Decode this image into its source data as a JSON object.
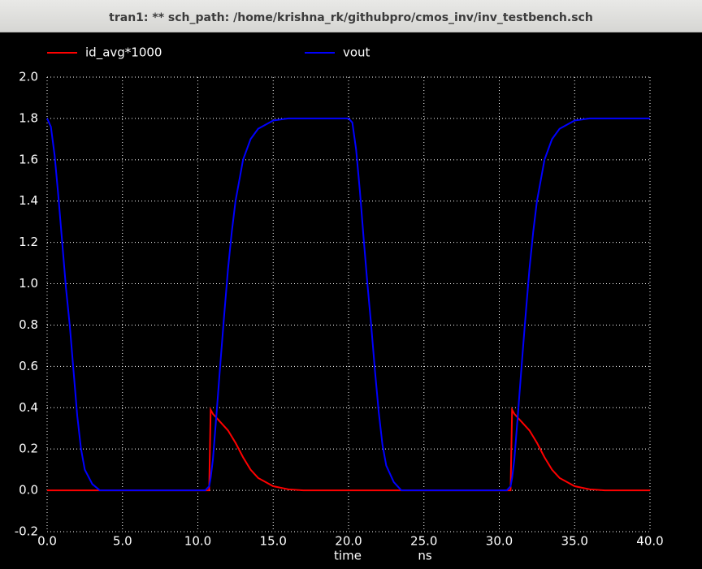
{
  "window": {
    "title": "tran1: ** sch_path: /home/krishna_rk/githubpro/cmos_inv/inv_testbench.sch"
  },
  "chart_data": {
    "type": "line",
    "xlabel": "time",
    "xunit": "ns",
    "x": [
      0,
      0.25,
      0.5,
      0.75,
      1,
      1.25,
      1.5,
      1.75,
      2,
      2.25,
      2.5,
      3,
      3.5,
      10.5,
      10.75,
      10.85,
      11,
      11.25,
      11.5,
      11.75,
      12,
      12.25,
      12.5,
      13,
      13.5,
      14,
      15,
      16,
      17,
      20,
      20.25,
      20.5,
      20.75,
      21,
      21.25,
      21.5,
      21.75,
      22,
      22.25,
      22.5,
      23,
      23.5,
      30.5,
      30.75,
      30.85,
      31,
      31.25,
      31.5,
      31.75,
      32,
      32.25,
      32.5,
      33,
      33.5,
      34,
      35,
      36,
      37,
      40
    ],
    "series": [
      {
        "name": "id_avg*1000",
        "color": "#ff0000",
        "values": [
          0,
          0,
          0,
          0,
          0,
          0,
          0,
          0,
          0,
          0,
          0,
          0,
          0,
          0,
          0,
          0.39,
          0.37,
          0.35,
          0.33,
          0.31,
          0.29,
          0.26,
          0.23,
          0.16,
          0.1,
          0.06,
          0.02,
          0.005,
          0,
          0,
          0,
          0,
          0,
          0,
          0,
          0,
          0,
          0,
          0,
          0,
          0,
          0,
          0,
          0,
          0.39,
          0.37,
          0.35,
          0.33,
          0.31,
          0.29,
          0.26,
          0.23,
          0.16,
          0.1,
          0.06,
          0.02,
          0.005,
          0,
          0
        ]
      },
      {
        "name": "vout",
        "color": "#0000ff",
        "values": [
          1.8,
          1.76,
          1.62,
          1.42,
          1.2,
          0.98,
          0.8,
          0.58,
          0.36,
          0.2,
          0.1,
          0.03,
          0,
          0,
          0.02,
          0.06,
          0.15,
          0.38,
          0.62,
          0.85,
          1.07,
          1.25,
          1.4,
          1.6,
          1.7,
          1.75,
          1.79,
          1.8,
          1.8,
          1.8,
          1.78,
          1.65,
          1.45,
          1.22,
          1.0,
          0.8,
          0.58,
          0.38,
          0.22,
          0.12,
          0.04,
          0,
          0,
          0.02,
          0.06,
          0.15,
          0.38,
          0.62,
          0.85,
          1.07,
          1.25,
          1.4,
          1.6,
          1.7,
          1.75,
          1.79,
          1.8,
          1.8,
          1.8
        ]
      }
    ],
    "xlim": [
      0,
      40
    ],
    "xticks": [
      {
        "value": 0,
        "label": "0.0"
      },
      {
        "value": 5,
        "label": "5.0"
      },
      {
        "value": 10,
        "label": "10.0"
      },
      {
        "value": 15,
        "label": "15.0"
      },
      {
        "value": 20,
        "label": "20.0"
      },
      {
        "value": 25,
        "label": "25.0"
      },
      {
        "value": 30,
        "label": "30.0"
      },
      {
        "value": 35,
        "label": "35.0"
      },
      {
        "value": 40,
        "label": "40.0"
      }
    ],
    "ylim": [
      -0.2,
      2.0
    ],
    "yticks": [
      -0.2,
      {
        "value": 0,
        "label": "0.0"
      },
      0.2,
      0.4,
      0.6,
      0.8,
      {
        "value": 1,
        "label": "1.0"
      },
      1.2,
      1.4,
      1.6,
      1.8,
      {
        "value": 2,
        "label": "2.0"
      }
    ],
    "grid": true
  }
}
